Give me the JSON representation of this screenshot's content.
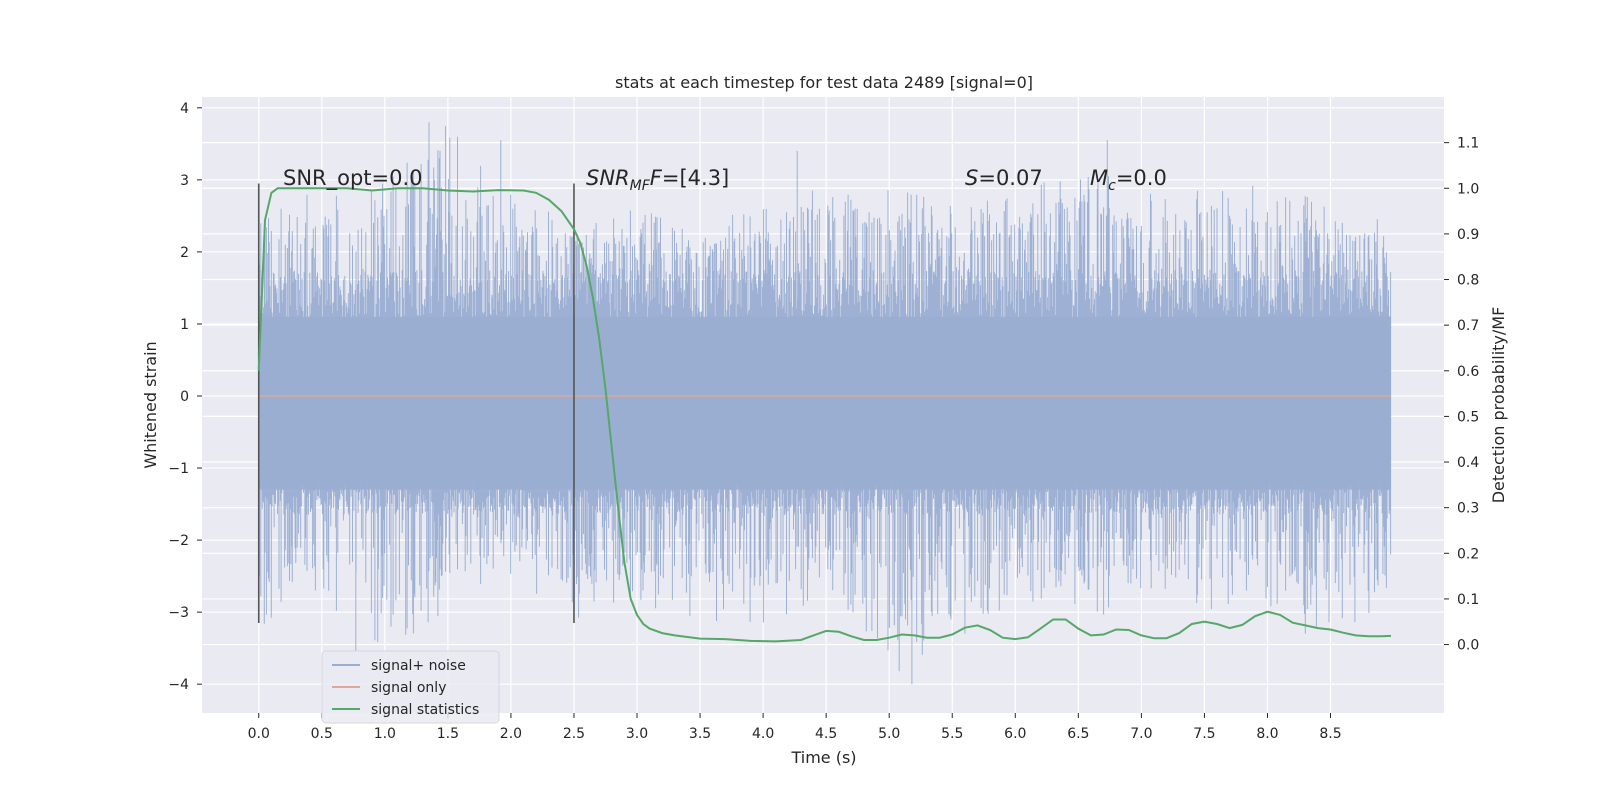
{
  "chart_data": {
    "type": "line",
    "title": "stats at each timestep for test data 2489 [signal=0]",
    "xlabel": "Time (s)",
    "ylabel": "Whitened strain",
    "y2label": "Detection probability/MF",
    "xlim": [
      -0.45,
      9.4
    ],
    "ylim": [
      -4.4,
      4.15
    ],
    "y2lim": [
      -0.15,
      1.2
    ],
    "xticks": [
      "0.0",
      "0.5",
      "1.0",
      "1.5",
      "2.0",
      "2.5",
      "3.0",
      "3.5",
      "4.0",
      "4.5",
      "5.0",
      "5.5",
      "6.0",
      "6.5",
      "7.0",
      "7.5",
      "8.0",
      "8.5"
    ],
    "yticks": [
      "4",
      "3",
      "2",
      "1",
      "0",
      "−1",
      "−2",
      "−3",
      "−4"
    ],
    "y2ticks": [
      "1.1",
      "1.0",
      "0.9",
      "0.8",
      "0.7",
      "0.6",
      "0.5",
      "0.4",
      "0.3",
      "0.2",
      "0.1",
      "0.0"
    ],
    "grid": true,
    "legend": {
      "placement": "lower-left",
      "entries": [
        "signal+ noise",
        "signal only",
        "signal statistics"
      ]
    },
    "annotations": {
      "snr_opt": "SNR_opt=0.0",
      "snr_mf_base": "SNR",
      "snr_mf_sub": "MF",
      "snr_mf_value": "=[4.3]",
      "s_sym": "S",
      "s_value": "=0.07",
      "mc_sym": "M",
      "mc_sub": "c",
      "mc_value": "=0.0"
    },
    "markers_x": [
      0.0,
      2.5
    ],
    "markers_range": [
      -3.15,
      2.95
    ],
    "noise": {
      "x_range": [
        0.0,
        8.98
      ],
      "envelope_x": [
        0.0,
        0.5,
        1.0,
        1.5,
        2.0,
        2.5,
        3.0,
        3.5,
        4.0,
        4.5,
        5.0,
        5.5,
        6.0,
        6.5,
        7.0,
        7.5,
        8.0,
        8.5,
        8.98
      ],
      "envelope_upper": [
        2.6,
        2.9,
        3.0,
        3.8,
        2.8,
        2.5,
        2.6,
        2.4,
        2.7,
        3.1,
        2.9,
        2.7,
        2.8,
        3.3,
        2.8,
        3.0,
        2.9,
        2.7,
        2.4
      ],
      "envelope_lower": [
        -3.25,
        -2.9,
        -3.6,
        -3.0,
        -2.5,
        -3.2,
        -2.9,
        -3.1,
        -3.2,
        -2.8,
        -4.0,
        -3.3,
        -3.0,
        -3.1,
        -3.0,
        -3.0,
        -2.9,
        -3.3,
        -3.1
      ],
      "peaks": [
        {
          "x": 1.35,
          "y": 3.8
        },
        {
          "x": 1.92,
          "y": 3.55
        },
        {
          "x": 4.27,
          "y": 3.4
        },
        {
          "x": 6.73,
          "y": 3.55
        },
        {
          "x": 0.77,
          "y": -3.55
        },
        {
          "x": 5.18,
          "y": -4.0
        },
        {
          "x": 5.6,
          "y": -3.3
        },
        {
          "x": 8.3,
          "y": -3.3
        }
      ]
    },
    "series": [
      {
        "name": "signal only",
        "axis": "left",
        "x": [
          0.0,
          8.98
        ],
        "y": [
          0.0,
          0.0
        ]
      },
      {
        "name": "signal statistics",
        "axis": "right",
        "x": [
          0.0,
          0.05,
          0.1,
          0.15,
          0.2,
          0.3,
          0.5,
          0.7,
          0.9,
          1.1,
          1.3,
          1.5,
          1.7,
          1.9,
          2.1,
          2.2,
          2.3,
          2.4,
          2.5,
          2.55,
          2.6,
          2.65,
          2.7,
          2.75,
          2.8,
          2.85,
          2.9,
          2.95,
          3.0,
          3.05,
          3.1,
          3.2,
          3.3,
          3.5,
          3.7,
          3.9,
          4.1,
          4.3,
          4.4,
          4.5,
          4.6,
          4.7,
          4.8,
          4.9,
          5.0,
          5.1,
          5.2,
          5.3,
          5.4,
          5.5,
          5.6,
          5.7,
          5.8,
          5.9,
          6.0,
          6.1,
          6.2,
          6.3,
          6.4,
          6.5,
          6.6,
          6.7,
          6.8,
          6.9,
          7.0,
          7.1,
          7.2,
          7.3,
          7.4,
          7.5,
          7.6,
          7.7,
          7.8,
          7.9,
          8.0,
          8.1,
          8.2,
          8.3,
          8.4,
          8.5,
          8.6,
          8.7,
          8.8,
          8.9,
          8.98
        ],
        "y": [
          0.6,
          0.93,
          0.99,
          1.0,
          1.0,
          1.0,
          1.0,
          1.0,
          0.995,
          1.0,
          1.0,
          0.995,
          0.993,
          0.996,
          0.995,
          0.99,
          0.975,
          0.95,
          0.91,
          0.88,
          0.83,
          0.76,
          0.67,
          0.56,
          0.43,
          0.3,
          0.18,
          0.1,
          0.065,
          0.045,
          0.035,
          0.025,
          0.02,
          0.013,
          0.012,
          0.008,
          0.007,
          0.01,
          0.02,
          0.03,
          0.028,
          0.018,
          0.01,
          0.01,
          0.015,
          0.022,
          0.02,
          0.015,
          0.015,
          0.022,
          0.037,
          0.042,
          0.032,
          0.015,
          0.012,
          0.016,
          0.035,
          0.055,
          0.055,
          0.035,
          0.02,
          0.022,
          0.033,
          0.032,
          0.02,
          0.014,
          0.014,
          0.025,
          0.045,
          0.05,
          0.045,
          0.036,
          0.043,
          0.062,
          0.072,
          0.065,
          0.048,
          0.042,
          0.036,
          0.033,
          0.026,
          0.02,
          0.018,
          0.018,
          0.019
        ]
      }
    ],
    "colors": {
      "background": "#eaeaf2",
      "grid": "#ffffff",
      "noise": "#9aaed2",
      "noise_band": "#a2b4d5",
      "signal_only": "#e0a696",
      "statistics": "#55a868",
      "marker": "#555555",
      "text": "#262626"
    }
  }
}
